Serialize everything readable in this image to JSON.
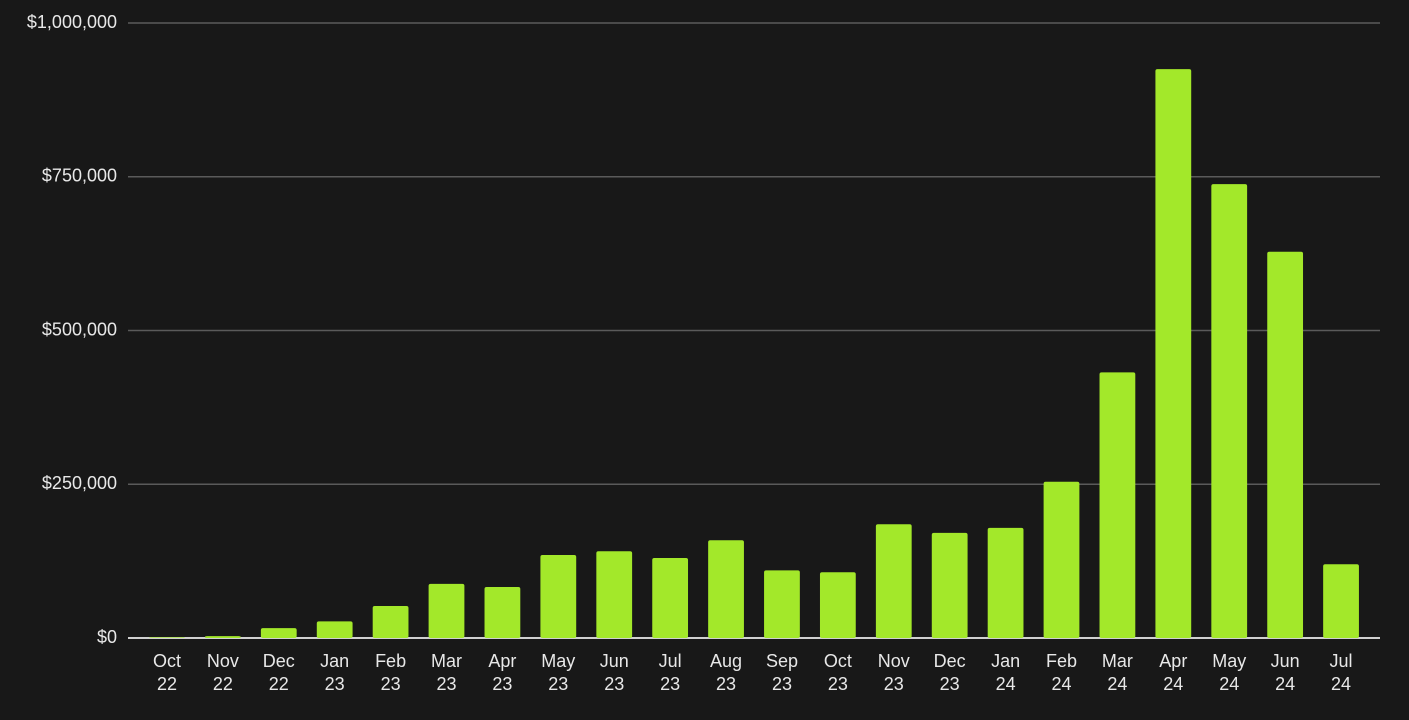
{
  "chart_data": {
    "type": "bar",
    "categories": [
      "Oct 22",
      "Nov 22",
      "Dec 22",
      "Jan 23",
      "Feb 23",
      "Mar 23",
      "Apr 23",
      "May 23",
      "Jun 23",
      "Jul 23",
      "Aug 23",
      "Sep 23",
      "Oct 23",
      "Nov 23",
      "Dec 23",
      "Jan 24",
      "Feb 24",
      "Mar 24",
      "Apr 24",
      "May 24",
      "Jun 24",
      "Jul 24"
    ],
    "values": [
      1000,
      3000,
      16000,
      27000,
      52000,
      88000,
      83000,
      135000,
      141000,
      130000,
      159000,
      110000,
      107000,
      185000,
      171000,
      179000,
      254000,
      432000,
      925000,
      738000,
      628000,
      120000
    ],
    "color": "#a3e82a",
    "ylim": [
      0,
      1000000
    ],
    "yticks": [
      {
        "value": 0,
        "label": "$0"
      },
      {
        "value": 250000,
        "label": "$250,000"
      },
      {
        "value": 500000,
        "label": "$500,000"
      },
      {
        "value": 750000,
        "label": "$750,000"
      },
      {
        "value": 1000000,
        "label": "$1,000,000"
      }
    ],
    "grid": true
  }
}
